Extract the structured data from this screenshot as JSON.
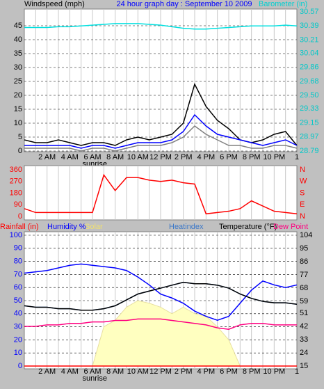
{
  "chart_data": [
    {
      "type": "line",
      "title": "24 hour graph day : September 10 2009",
      "ylabel": "Windspeed (mph)",
      "y2label": "Barometer (in)",
      "x": [
        0,
        1,
        2,
        3,
        4,
        5,
        6,
        7,
        8,
        9,
        10,
        11,
        12,
        13,
        14,
        15,
        16,
        17,
        18,
        19,
        20,
        21,
        22,
        23,
        24
      ],
      "xlim": [
        0,
        24
      ],
      "xticks": [
        {
          "value": 2,
          "label": "2 AM"
        },
        {
          "value": 4,
          "label": "4 AM"
        },
        {
          "value": 6,
          "label": "6 AM"
        },
        {
          "value": 8,
          "label": "8 AM"
        },
        {
          "value": 10,
          "label": "10 AM"
        },
        {
          "value": 12,
          "label": "12 PM"
        },
        {
          "value": 14,
          "label": "2 PM"
        },
        {
          "value": 16,
          "label": "4 PM"
        },
        {
          "value": 18,
          "label": "6 PM"
        },
        {
          "value": 20,
          "label": "8 PM"
        },
        {
          "value": 22,
          "label": "10 PM"
        },
        {
          "value": 24,
          "label": "1"
        }
      ],
      "xgrid": [
        1,
        2,
        3,
        4,
        5,
        6,
        7,
        8,
        9,
        10,
        11,
        12,
        13,
        14,
        15,
        16,
        17,
        18,
        19,
        20,
        21,
        22,
        23
      ],
      "sunrise": {
        "value": 6.2,
        "label": "sunrise"
      },
      "ylim": [
        0,
        50
      ],
      "yticks": [
        0,
        5,
        10,
        15,
        20,
        25,
        30,
        35,
        40,
        45
      ],
      "y2lim": [
        28.79,
        30.57
      ],
      "y2ticks": [
        28.79,
        28.97,
        29.15,
        29.33,
        {
          "value": 29.5,
          "label": "29.50"
        },
        29.68,
        29.86,
        30.04,
        30.21,
        30.39,
        30.57
      ],
      "grid": true,
      "series": [
        {
          "color": "#808080",
          "values": [
            1,
            1,
            1,
            1,
            1,
            0,
            1,
            1,
            0,
            1,
            2,
            2,
            2,
            3,
            5,
            9,
            6,
            4,
            2,
            2,
            1,
            1,
            2,
            2,
            1
          ]
        },
        {
          "color": "#000000",
          "values": [
            4,
            3,
            3,
            4,
            3,
            2,
            3,
            3,
            2,
            4,
            5,
            4,
            5,
            6,
            10,
            24,
            16,
            11,
            8,
            4,
            3,
            4,
            6,
            7,
            2
          ]
        },
        {
          "color": "#0000ff",
          "values": [
            2,
            2,
            2,
            2,
            2,
            1,
            2,
            2,
            1,
            2,
            3,
            3,
            3,
            4,
            7,
            13,
            9,
            6,
            5,
            4,
            3,
            2,
            3,
            4,
            2
          ]
        },
        {
          "color": "#00e0e0",
          "axis": "y2",
          "values": [
            30.37,
            30.37,
            30.37,
            30.38,
            30.38,
            30.39,
            30.4,
            30.41,
            30.42,
            30.42,
            30.42,
            30.41,
            30.4,
            30.38,
            30.36,
            30.35,
            30.35,
            30.36,
            30.37,
            30.38,
            30.39,
            30.39,
            30.39,
            30.4,
            30.39
          ]
        }
      ]
    },
    {
      "type": "line",
      "x": [
        0,
        1,
        2,
        3,
        4,
        5,
        6,
        7,
        8,
        9,
        10,
        11,
        12,
        13,
        14,
        15,
        16,
        17,
        18,
        19,
        20,
        21,
        22,
        23,
        24
      ],
      "xlim": [
        0,
        24
      ],
      "xgrid": [
        1,
        2,
        3,
        4,
        5,
        6,
        7,
        8,
        9,
        10,
        11,
        12,
        13,
        14,
        15,
        16,
        17,
        18,
        19,
        20,
        21,
        22,
        23
      ],
      "ylim": [
        0,
        360
      ],
      "yticks": [
        0,
        90,
        180,
        270,
        360
      ],
      "y2lim": [
        0,
        360
      ],
      "y2ticks": [
        {
          "value": 0,
          "label": "N"
        },
        {
          "value": 90,
          "label": "E"
        },
        {
          "value": 180,
          "label": "S"
        },
        {
          "value": 270,
          "label": "W"
        },
        {
          "value": 360,
          "label": "N"
        }
      ],
      "grid": false,
      "series": [
        {
          "color": "#ff0000",
          "values": [
            60,
            30,
            30,
            30,
            30,
            30,
            30,
            320,
            200,
            300,
            300,
            280,
            270,
            280,
            260,
            250,
            20,
            30,
            40,
            60,
            120,
            80,
            40,
            30,
            20
          ]
        }
      ]
    },
    {
      "type": "line",
      "x": [
        0,
        1,
        2,
        3,
        4,
        5,
        6,
        7,
        8,
        9,
        10,
        11,
        12,
        13,
        14,
        15,
        16,
        17,
        18,
        19,
        20,
        21,
        22,
        23,
        24
      ],
      "xlim": [
        0,
        24
      ],
      "xticks": [
        {
          "value": 2,
          "label": "2 AM"
        },
        {
          "value": 4,
          "label": "4 AM"
        },
        {
          "value": 6,
          "label": "6 AM"
        },
        {
          "value": 8,
          "label": "8 AM"
        },
        {
          "value": 10,
          "label": "10 AM"
        },
        {
          "value": 12,
          "label": "12 PM"
        },
        {
          "value": 14,
          "label": "2 PM"
        },
        {
          "value": 16,
          "label": "4 PM"
        },
        {
          "value": 18,
          "label": "6 PM"
        },
        {
          "value": 20,
          "label": "8 PM"
        },
        {
          "value": 22,
          "label": "10 PM"
        },
        {
          "value": 24,
          "label": "1"
        }
      ],
      "xgrid": [
        1,
        2,
        3,
        4,
        5,
        6,
        7,
        8,
        9,
        10,
        11,
        12,
        13,
        14,
        15,
        16,
        17,
        18,
        19,
        20,
        21,
        22,
        23
      ],
      "sunrise": {
        "value": 6.2,
        "label": "sunrise"
      },
      "ylim": [
        0,
        100
      ],
      "yticks": [
        0,
        10,
        20,
        30,
        40,
        50,
        60,
        70,
        80,
        90,
        100
      ],
      "y2lim": [
        15,
        104
      ],
      "y2ticks": [
        15,
        24,
        33,
        42,
        51,
        59,
        68,
        77,
        86,
        95,
        104
      ],
      "grid": true,
      "series": [
        {
          "name": "Rainfall (in)",
          "color": "#ff0000",
          "values": [
            0,
            0,
            0,
            0,
            0,
            0,
            0,
            0,
            0,
            0,
            0,
            0,
            0,
            0,
            0,
            0,
            0,
            0,
            0,
            0,
            0,
            0,
            0,
            0,
            0
          ]
        },
        {
          "name": "Humidity %",
          "color": "#0000ff",
          "values": [
            71,
            72,
            73,
            75,
            77,
            78,
            77,
            76,
            75,
            73,
            68,
            62,
            55,
            52,
            48,
            42,
            38,
            35,
            38,
            48,
            58,
            65,
            62,
            60,
            62
          ]
        },
        {
          "name": "Solar",
          "color": "#ffffc0",
          "style": "area",
          "values": [
            0,
            0,
            0,
            0,
            0,
            0,
            0,
            30,
            35,
            45,
            50,
            48,
            45,
            40,
            45,
            40,
            38,
            30,
            20,
            0,
            0,
            0,
            0,
            0,
            0
          ]
        },
        {
          "name": "Heatindex",
          "color": "#3c78c8",
          "axis": "y2",
          "values": [
            56,
            55,
            55,
            54,
            54,
            53,
            53,
            54,
            56,
            60,
            64,
            66,
            68,
            70,
            72,
            71,
            71,
            70,
            68,
            64,
            61,
            59,
            58,
            58,
            57
          ]
        },
        {
          "name": "Temperature (°F)",
          "color": "#000000",
          "axis": "y2",
          "values": [
            56,
            55,
            55,
            54,
            54,
            53,
            53,
            54,
            56,
            60,
            64,
            66,
            68,
            70,
            72,
            71,
            71,
            70,
            68,
            64,
            61,
            59,
            58,
            58,
            57
          ]
        },
        {
          "name": "Dew Point",
          "color": "#ff0080",
          "axis": "y2",
          "values": [
            42,
            42,
            43,
            43,
            44,
            44,
            45,
            45,
            46,
            46,
            47,
            47,
            47,
            46,
            45,
            44,
            43,
            41,
            40,
            43,
            44,
            44,
            43,
            43,
            43
          ]
        }
      ]
    }
  ]
}
